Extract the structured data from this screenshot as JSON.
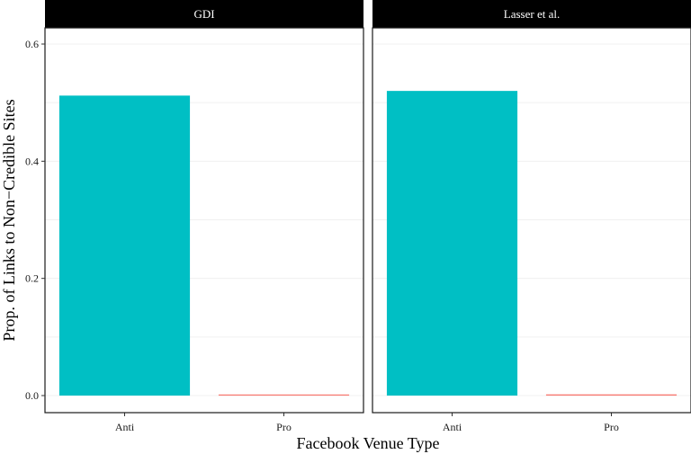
{
  "chart_data": {
    "type": "bar",
    "xlabel": "Facebook Venue Type",
    "ylabel": "Prop. of Links to Non−Credible Sites",
    "ylim": [
      0,
      0.64
    ],
    "yticks": [
      "0.0",
      "0.2",
      "0.4",
      "0.6"
    ],
    "categories": [
      "Anti",
      "Pro"
    ],
    "colors": {
      "Anti": "#00BFC4",
      "Pro": "#F8766D"
    },
    "strip_color": "#000000",
    "grid": true,
    "panels": [
      {
        "title": "GDI",
        "values": [
          0.512,
          0.001
        ]
      },
      {
        "title": "Lasser et al.",
        "values": [
          0.52,
          0.002
        ]
      }
    ]
  }
}
